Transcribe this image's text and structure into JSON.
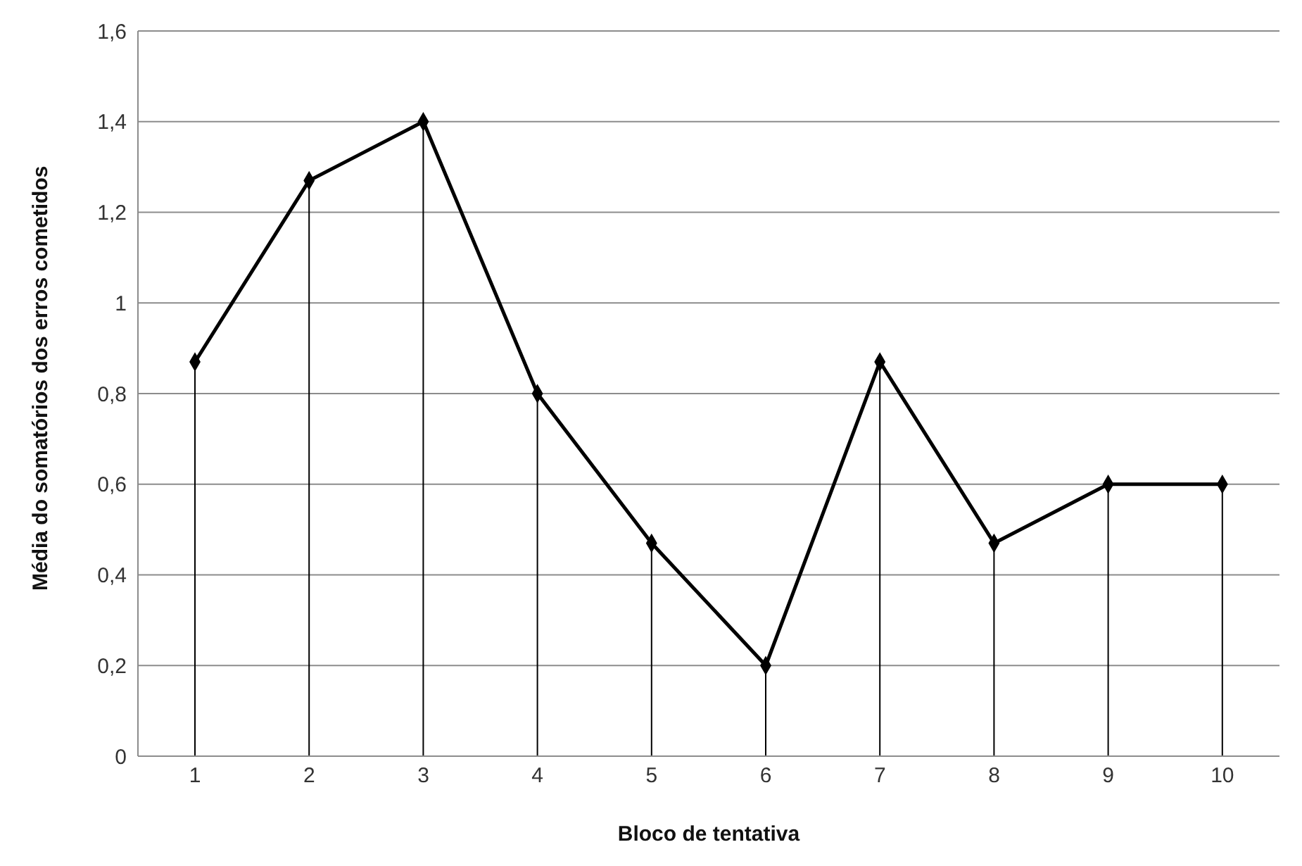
{
  "chart_data": {
    "type": "line",
    "xlabel": "Bloco de tentativa",
    "ylabel": "Média do somatórios dos erros cometidos",
    "categories": [
      "1",
      "2",
      "3",
      "4",
      "5",
      "6",
      "7",
      "8",
      "9",
      "10"
    ],
    "series": [
      {
        "type": "lollipop",
        "color": "#000000",
        "marker": "diamond",
        "values": [
          0.87,
          1.27,
          1.4,
          0.8,
          0.47,
          0.2,
          0.87,
          0.47,
          0.6,
          0.6
        ]
      },
      {
        "color": "#000000",
        "marker": "none",
        "line_style": "solid",
        "values": [
          0.87,
          1.27,
          1.4,
          0.8,
          0.47,
          0.2,
          0.87,
          0.47,
          0.6,
          0.6
        ]
      }
    ],
    "ylim": [
      0,
      1.6
    ],
    "yticks": [
      0,
      {
        "value": 0.2,
        "label": "0,2"
      },
      {
        "value": 0.4,
        "label": "0,4"
      },
      {
        "value": 0.6,
        "label": "0,6"
      },
      {
        "value": 0.8,
        "label": "0,8"
      },
      1,
      {
        "value": 1.2,
        "label": "1,2"
      },
      {
        "value": 1.4,
        "label": "1,4"
      },
      {
        "value": 1.6,
        "label": "1,6"
      }
    ],
    "grid": "y"
  }
}
